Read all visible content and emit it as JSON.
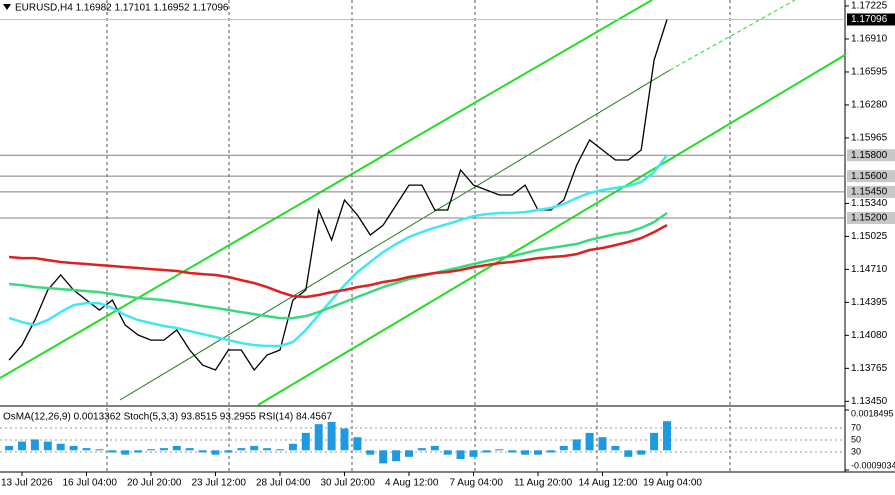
{
  "chart_data": {
    "type": "line",
    "title": "EURUSD,H4  1.16982 1.17101 1.16952 1.17096",
    "categories": [
      null,
      "13 Jul 2026",
      null,
      null,
      null,
      null,
      "16 Jul 04:00",
      null,
      null,
      null,
      null,
      "20 Jul 20:00",
      null,
      null,
      null,
      null,
      "23 Jul 12:00",
      null,
      null,
      null,
      null,
      "28 Jul 04:00",
      null,
      null,
      null,
      null,
      "30 Jul 20:00",
      null,
      null,
      null,
      null,
      "4 Aug 12:00",
      null,
      null,
      null,
      null,
      "7 Aug 04:00",
      null,
      null,
      null,
      null,
      "11 Aug 20:00",
      null,
      null,
      null,
      null,
      "14 Aug 12:00",
      null,
      null,
      null,
      null,
      "19 Aug 04:00"
    ],
    "series": [
      {
        "color": "#000000",
        "values": [
          1.13844,
          1.13987,
          1.14226,
          1.14513,
          1.14656,
          1.14513,
          1.14417,
          1.14322,
          1.14417,
          1.14178,
          1.14083,
          1.14035,
          1.14035,
          1.14131,
          1.1394,
          1.13796,
          1.13749,
          1.1394,
          1.1394,
          1.13749,
          1.13892,
          1.1394,
          1.14417,
          1.14513,
          1.15277,
          1.1499,
          1.15372,
          1.15229,
          1.15038,
          1.15133,
          1.15324,
          1.15515,
          1.15515,
          1.15277,
          1.15277,
          1.15659,
          1.15515,
          1.15468,
          1.1542,
          1.1542,
          1.15515,
          1.15277,
          1.15277,
          1.15372,
          1.15706,
          1.15945,
          1.1585,
          1.15754,
          1.15754,
          1.1585,
          1.16709,
          1.17096
        ]
      },
      {
        "color": "#40e8f0",
        "values": [
          1.14245,
          1.14207,
          1.14178,
          1.14226,
          1.14302,
          1.14369,
          1.14388,
          1.14388,
          1.14341,
          1.14274,
          1.14226,
          1.14197,
          1.14169,
          1.1415,
          1.14121,
          1.14092,
          1.14064,
          1.14035,
          1.14007,
          1.13987,
          1.13978,
          1.13978,
          1.14016,
          1.14131,
          1.14274,
          1.14417,
          1.1456,
          1.14684,
          1.1478,
          1.14876,
          1.14952,
          1.15019,
          1.15066,
          1.15108,
          1.15143,
          1.15181,
          1.15219,
          1.15238,
          1.15248,
          1.15248,
          1.15257,
          1.15277,
          1.15296,
          1.15334,
          1.15391,
          1.15439,
          1.15468,
          1.15487,
          1.15506,
          1.15544,
          1.15639,
          1.15802
        ]
      },
      {
        "color": "#3cd880",
        "values": [
          1.1457,
          1.1456,
          1.14541,
          1.14532,
          1.14522,
          1.14513,
          1.14503,
          1.14493,
          1.14474,
          1.14455,
          1.14436,
          1.14427,
          1.14417,
          1.14398,
          1.14379,
          1.14359,
          1.14341,
          1.14322,
          1.14302,
          1.14283,
          1.14264,
          1.14245,
          1.14245,
          1.14264,
          1.14302,
          1.1435,
          1.14398,
          1.14446,
          1.14493,
          1.14541,
          1.14579,
          1.14618,
          1.14646,
          1.14675,
          1.14704,
          1.14732,
          1.14761,
          1.1479,
          1.14818,
          1.14837,
          1.14866,
          1.14895,
          1.14914,
          1.14933,
          1.14952,
          1.1499,
          1.15019,
          1.15047,
          1.15066,
          1.15105,
          1.15162,
          1.15248
        ]
      },
      {
        "color": "#e02020",
        "values": [
          1.14828,
          1.14818,
          1.14818,
          1.14799,
          1.1478,
          1.1477,
          1.14761,
          1.14751,
          1.14742,
          1.14732,
          1.14723,
          1.14713,
          1.14704,
          1.14694,
          1.14675,
          1.14665,
          1.14656,
          1.14637,
          1.14608,
          1.14579,
          1.14541,
          1.14493,
          1.14455,
          1.14446,
          1.14465,
          1.14493,
          1.14513,
          1.14541,
          1.1456,
          1.14589,
          1.14608,
          1.14637,
          1.14656,
          1.14675,
          1.14685,
          1.14704,
          1.14732,
          1.14751,
          1.1477,
          1.1478,
          1.14799,
          1.14818,
          1.14828,
          1.14837,
          1.14856,
          1.14895,
          1.14914,
          1.14942,
          1.14971,
          1.15009,
          1.15066,
          1.15133
        ]
      }
    ],
    "ylim": [
      1.13415,
      1.17282
    ],
    "yticks": [
      1.17225,
      {
        "value": 1.1691,
        "label": "1.16910"
      },
      1.16595,
      {
        "value": 1.1628,
        "label": "1.16280"
      },
      1.15965,
      {
        "value": 1.1534,
        "label": "1.15340"
      },
      1.15025,
      {
        "value": 1.1471,
        "label": "1.14710"
      },
      1.14395,
      {
        "value": 1.1408,
        "label": "1.14080"
      },
      1.13765,
      {
        "value": 1.1345,
        "label": "1.13450"
      }
    ],
    "levels": [
      {
        "value": 1.158,
        "label": "1.15800"
      },
      {
        "value": 1.156,
        "label": "1.15600"
      },
      {
        "value": 1.1545,
        "label": "1.15450"
      },
      {
        "value": 1.152,
        "label": "1.15200"
      }
    ],
    "last_price": {
      "value": 1.17096,
      "label": "1.17096"
    },
    "indicator": {
      "type": "bar",
      "title": "OsMA(12,26,9) 0.0013362  Stoch(5,3,3) 93.8515 93.2955  RSI(14) 84.4567",
      "color": "#1e9be0",
      "values": [
        0.0002,
        0.0004,
        0.0005,
        0.0004,
        0.0003,
        0.0002,
        0.0001,
        5e-05,
        -0.0001,
        -0.0002,
        -0.0001,
        5e-05,
        0.0001,
        0.0002,
        0.0001,
        -0.0001,
        -0.0002,
        -0.0001,
        0.0001,
        0.0002,
        0.0001,
        5e-05,
        0.0003,
        0.0008,
        0.0012,
        0.0013,
        0.001,
        0.0006,
        -0.0002,
        -0.0006,
        -0.0005,
        -0.0003,
        0.0001,
        0.0002,
        -0.0002,
        -0.0004,
        -0.0003,
        -0.0001,
        5e-05,
        -0.0001,
        -0.0002,
        -0.0002,
        -0.0001,
        0.0002,
        0.0005,
        0.0008,
        0.0006,
        0.0002,
        -0.0003,
        -0.0002,
        0.0008,
        0.0013362
      ],
      "ylim": [
        -0.0009034,
        0.0018495
      ],
      "yticks": [
        0.0018495,
        -0.0009034
      ],
      "level_labels": [
        "70",
        "50",
        "30"
      ]
    }
  }
}
